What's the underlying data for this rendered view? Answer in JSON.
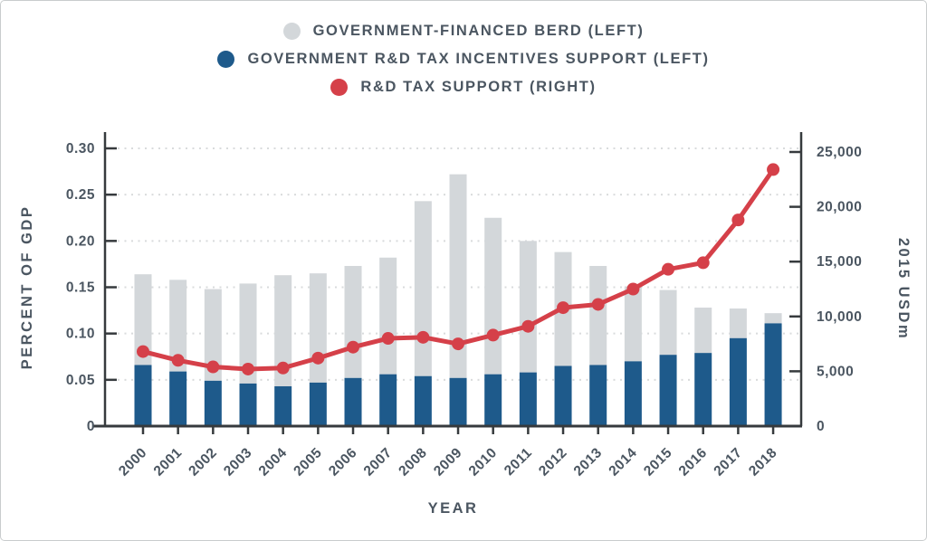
{
  "figure": {
    "background": "#ffffff",
    "border_color": "#c9cccd",
    "axis_line_color": "#363a3d",
    "gridline_color": "#d9dbdc",
    "text_color": "#4b5661"
  },
  "legend": [
    {
      "label": "GOVERNMENT-FINANCED BERD (LEFT)",
      "color": "#d3d7da"
    },
    {
      "label": "GOVERNMENT R&D TAX INCENTIVES SUPPORT (LEFT)",
      "color": "#1e5a8b"
    },
    {
      "label": "R&D TAX SUPPORT (RIGHT)",
      "color": "#d54049"
    }
  ],
  "chart_data": {
    "type": "bar",
    "subtype": "stacked-bars-with-line-dual-axis",
    "categories": [
      "2000",
      "2001",
      "2002",
      "2003",
      "2004",
      "2005",
      "2006",
      "2007",
      "2008",
      "2009",
      "2010",
      "2011",
      "2012",
      "2013",
      "2014",
      "2015",
      "2016",
      "2017",
      "2018"
    ],
    "series": [
      {
        "name": "GOVERNMENT R&D TAX INCENTIVES SUPPORT (LEFT)",
        "type": "bar-stack-bottom",
        "axis": "left",
        "color": "#1e5a8b",
        "values": [
          0.066,
          0.059,
          0.049,
          0.046,
          0.043,
          0.047,
          0.052,
          0.056,
          0.054,
          0.052,
          0.056,
          0.058,
          0.065,
          0.066,
          0.07,
          0.077,
          0.079,
          0.095,
          0.111
        ]
      },
      {
        "name": "GOVERNMENT-FINANCED BERD (LEFT)",
        "type": "bar-stack-top",
        "axis": "left",
        "color": "#d3d7da",
        "values": [
          0.098,
          0.099,
          0.099,
          0.108,
          0.12,
          0.118,
          0.121,
          0.126,
          0.189,
          0.22,
          0.169,
          0.142,
          0.123,
          0.107,
          0.081,
          0.07,
          0.049,
          0.032,
          0.011
        ]
      },
      {
        "name": "R&D TAX SUPPORT (RIGHT)",
        "type": "line",
        "axis": "right",
        "color": "#d54049",
        "values": [
          6800,
          6000,
          5400,
          5200,
          5300,
          6200,
          7200,
          8000,
          8100,
          7500,
          8300,
          9100,
          10800,
          11100,
          12500,
          14300,
          14900,
          18800,
          23400
        ]
      }
    ],
    "left_axis": {
      "title": "PERCENT OF GDP",
      "min": 0,
      "max": 0.3,
      "ticks": [
        {
          "value": 0,
          "label": "0"
        },
        {
          "value": 0.05,
          "label": "0.05"
        },
        {
          "value": 0.1,
          "label": "0.10"
        },
        {
          "value": 0.15,
          "label": "0.15"
        },
        {
          "value": 0.2,
          "label": "0.20"
        },
        {
          "value": 0.25,
          "label": "0.25"
        },
        {
          "value": 0.3,
          "label": "0.30"
        }
      ]
    },
    "right_axis": {
      "title": "2015 USDm",
      "min": 0,
      "max": 25000,
      "ticks": [
        {
          "value": 0,
          "label": "0"
        },
        {
          "value": 5000,
          "label": "5,000"
        },
        {
          "value": 10000,
          "label": "10,000"
        },
        {
          "value": 15000,
          "label": "15,000"
        },
        {
          "value": 20000,
          "label": "20,000"
        },
        {
          "value": 25000,
          "label": "25,000"
        }
      ]
    },
    "x_axis": {
      "title": "YEAR"
    },
    "grid": "dotted horizontal at left-axis ticks",
    "legend_position": "top-center"
  }
}
